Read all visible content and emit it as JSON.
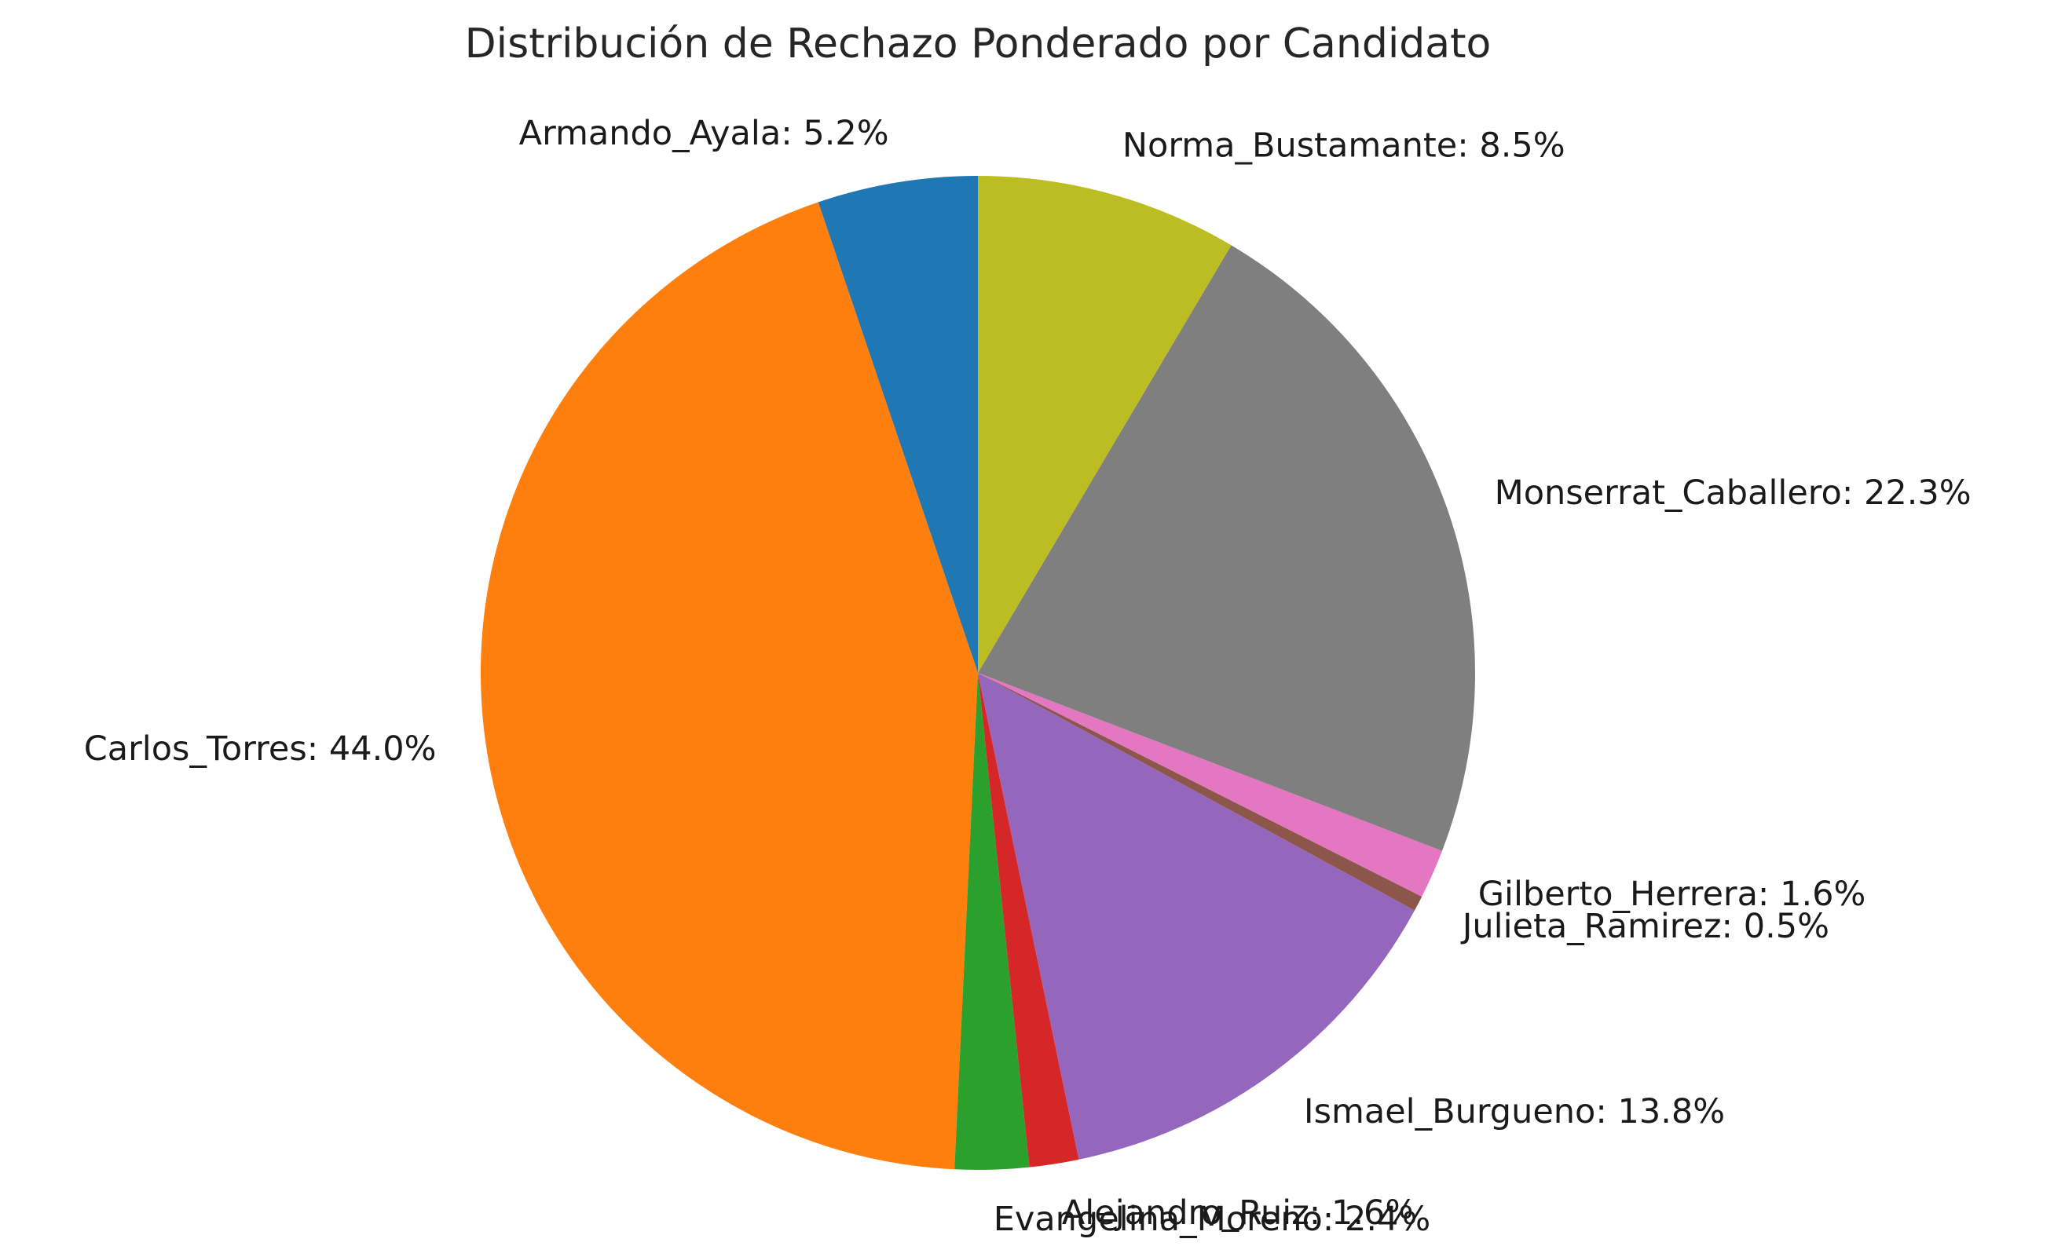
{
  "chart_data": {
    "type": "pie",
    "title": "Distribución de Rechazo Ponderado por Candidato",
    "start_angle_deg": 90,
    "direction": "counterclockwise",
    "slices": [
      {
        "label": "Armando_Ayala",
        "value": 5.2,
        "display": "Armando_Ayala: 5.2%",
        "color": "#1f77b4"
      },
      {
        "label": "Carlos_Torres",
        "value": 44.0,
        "display": "Carlos_Torres: 44.0%",
        "color": "#ff7f0e"
      },
      {
        "label": "Evangelina_Moreno",
        "value": 2.4,
        "display": "Evangelina_Moreno: 2.4%",
        "color": "#2ca02c"
      },
      {
        "label": "Alejandro_Ruiz",
        "value": 1.6,
        "display": "Alejandro_Ruiz: 1.6%",
        "color": "#d62728"
      },
      {
        "label": "Ismael_Burgueno",
        "value": 13.8,
        "display": "Ismael_Burgueno: 13.8%",
        "color": "#9467bd"
      },
      {
        "label": "Julieta_Ramirez",
        "value": 0.5,
        "display": "Julieta_Ramirez: 0.5%",
        "color": "#8c564b"
      },
      {
        "label": "Gilberto_Herrera",
        "value": 1.6,
        "display": "Gilberto_Herrera: 1.6%",
        "color": "#e377c2"
      },
      {
        "label": "Monserrat_Caballero",
        "value": 22.3,
        "display": "Monserrat_Caballero: 22.3%",
        "color": "#7f7f7f"
      },
      {
        "label": "Norma_Bustamante",
        "value": 8.5,
        "display": "Norma_Bustamante: 8.5%",
        "color": "#bcbd22"
      }
    ]
  }
}
